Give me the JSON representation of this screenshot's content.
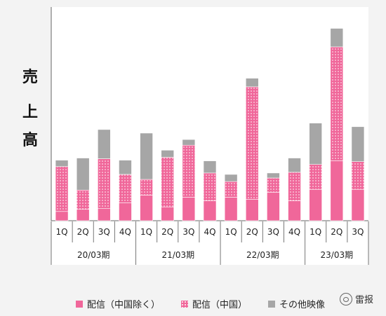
{
  "chart_data": {
    "type": "bar",
    "stacked": true,
    "ylabel": "売上高",
    "categories": [
      "1Q",
      "2Q",
      "3Q",
      "4Q",
      "1Q",
      "2Q",
      "3Q",
      "4Q",
      "1Q",
      "2Q",
      "3Q",
      "4Q",
      "1Q",
      "2Q",
      "3Q"
    ],
    "groups": [
      {
        "label": "20/03期",
        "count": 4
      },
      {
        "label": "21/03期",
        "count": 4
      },
      {
        "label": "22/03期",
        "count": 4
      },
      {
        "label": "23/03期",
        "count": 3
      }
    ],
    "series": [
      {
        "name": "配信（中国除く）",
        "color": "#f0679a",
        "pattern": "solid",
        "values": [
          13,
          16,
          17,
          25,
          36,
          19,
          33,
          28,
          33,
          30,
          40,
          28,
          44,
          84,
          44
        ]
      },
      {
        "name": "配信（中国）",
        "color": "#f0679a",
        "pattern": "dotted",
        "values": [
          63,
          27,
          70,
          40,
          22,
          70,
          73,
          39,
          22,
          158,
          20,
          40,
          35,
          160,
          39
        ]
      },
      {
        "name": "その他映像",
        "color": "#a6a6a6",
        "pattern": "solid",
        "values": [
          9,
          45,
          41,
          20,
          65,
          10,
          8,
          17,
          10,
          12,
          7,
          20,
          58,
          26,
          49
        ]
      }
    ],
    "ylim": [
      0,
      300
    ],
    "grid": false,
    "legend_position": "bottom"
  },
  "watermark": {
    "text": "雷报",
    "icon": "wechat-icon"
  }
}
